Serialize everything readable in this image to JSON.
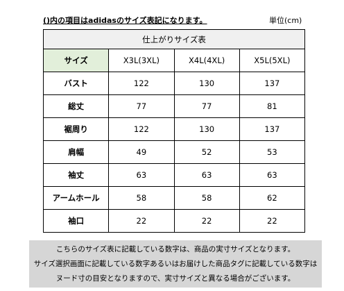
{
  "header": {
    "note": "()内の項目はadidasのサイズ表記になります。",
    "unit": "単位(cm)"
  },
  "table": {
    "title": "仕上がりサイズ表",
    "columns": [
      "サイズ",
      "X3L(3XL)",
      "X4L(4XL)",
      "X5L(5XL)"
    ],
    "rows": [
      [
        "バスト",
        122,
        130,
        137
      ],
      [
        "総丈",
        77,
        77,
        81
      ],
      [
        "裾周り",
        122,
        130,
        137
      ],
      [
        "肩幅",
        49,
        52,
        53
      ],
      [
        "袖丈",
        63,
        63,
        63
      ],
      [
        "アームホール",
        58,
        58,
        62
      ],
      [
        "袖口",
        22,
        22,
        22
      ]
    ]
  },
  "footer": {
    "lines": [
      "こちらのサイズ表に記載している数字は、商品の実寸サイズとなります。",
      "サイズ選択画面に記載している数字あるいはお届けした商品タグに記載している数字は",
      "ヌード寸の目安となりますので、実寸サイズと異なる場合がございます。"
    ]
  }
}
